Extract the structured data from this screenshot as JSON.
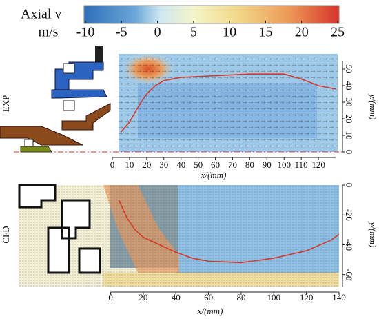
{
  "chart_data": [
    {
      "type": "colorbar",
      "title": "Axial v",
      "unit": "m/s",
      "clim": [
        -10,
        25
      ],
      "ticks": [
        -10,
        -5,
        0,
        5,
        10,
        15,
        20,
        25
      ]
    },
    {
      "type": "vector",
      "title": "EXP",
      "xlabel": "x/(mm)",
      "ylabel": "y/(mm)",
      "xlim": [
        0,
        130
      ],
      "xticks": [
        0,
        10,
        20,
        30,
        40,
        50,
        60,
        70,
        80,
        90,
        100,
        110,
        120
      ],
      "ylim": [
        0,
        55
      ],
      "yticks": [
        0,
        10,
        20,
        30,
        40,
        50
      ],
      "line": {
        "color": "#d9382c",
        "x": [
          5,
          10,
          15,
          20,
          25,
          30,
          40,
          60,
          80,
          100,
          110,
          120,
          130
        ],
        "y": [
          12,
          18,
          27,
          35,
          40,
          43,
          45,
          46,
          47,
          47,
          44,
          40,
          38
        ]
      }
    },
    {
      "type": "vector",
      "title": "CFD",
      "xlabel": "x/(mm)",
      "ylabel": "y/(mm)",
      "xlim": [
        -56,
        140
      ],
      "xticks": [
        0,
        20,
        40,
        60,
        80,
        100,
        120,
        140
      ],
      "ylim": [
        -68,
        0
      ],
      "yticks": [
        0,
        -20,
        -40,
        -60
      ],
      "line": {
        "color": "#d9382c",
        "x": [
          5,
          10,
          15,
          20,
          30,
          40,
          50,
          60,
          80,
          100,
          120,
          135,
          140
        ],
        "y": [
          -10,
          -22,
          -30,
          -35,
          -40,
          -45,
          -49,
          -51,
          -52,
          -49,
          -44,
          -37,
          -33
        ]
      }
    }
  ]
}
